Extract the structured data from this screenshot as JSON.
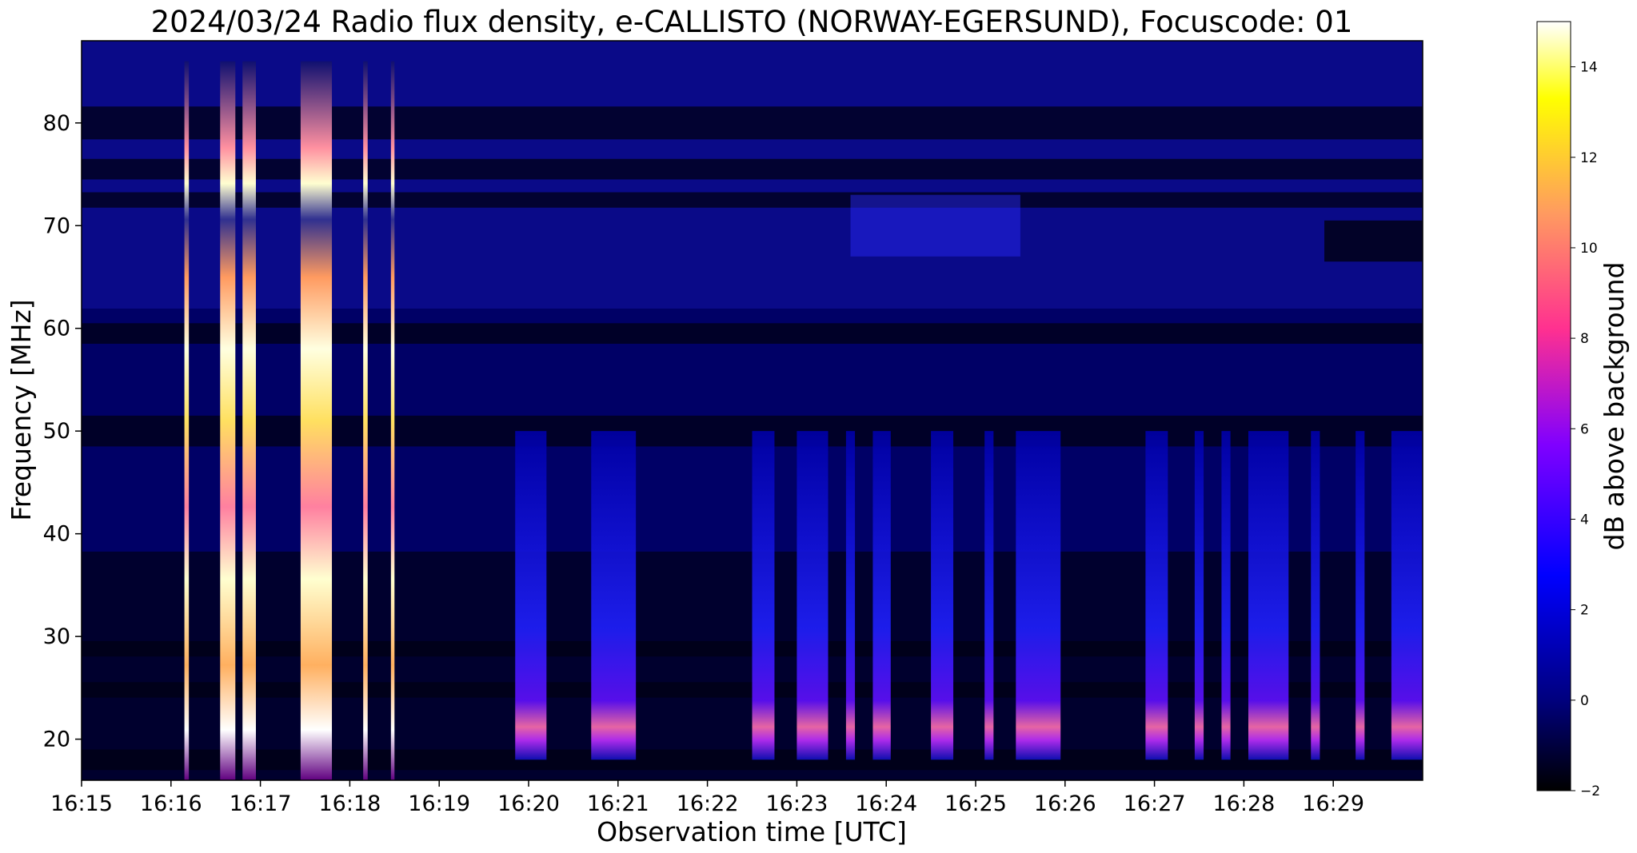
{
  "chart_data": {
    "type": "heatmap",
    "title": "2024/03/24  Radio flux density, e-CALLISTO (NORWAY-EGERSUND), Focuscode: 01",
    "xlabel": "Observation time [UTC]",
    "ylabel": "Frequency [MHz]",
    "x_ticks": [
      "16:15",
      "16:16",
      "16:17",
      "16:18",
      "16:19",
      "16:20",
      "16:21",
      "16:22",
      "16:23",
      "16:24",
      "16:25",
      "16:26",
      "16:27",
      "16:28",
      "16:29"
    ],
    "x_range_min": [
      0,
      15
    ],
    "y_ticks": [
      20,
      30,
      40,
      50,
      60,
      70,
      80
    ],
    "y_range_mhz": [
      16,
      88
    ],
    "colorbar": {
      "label": "dB above background",
      "ticks": [
        -2,
        0,
        2,
        4,
        6,
        8,
        10,
        12,
        14
      ],
      "range": [
        -2,
        15
      ],
      "colormap": "gnuplot2",
      "colors": [
        "#000000",
        "#000080",
        "#0000ff",
        "#8000ff",
        "#ff3090",
        "#ff9a60",
        "#ffff00",
        "#ffffff"
      ]
    },
    "strong_bursts": [
      {
        "start_min": 1.15,
        "end_min": 1.2
      },
      {
        "start_min": 1.55,
        "end_min": 1.72
      },
      {
        "start_min": 1.8,
        "end_min": 1.95
      },
      {
        "start_min": 2.45,
        "end_min": 2.8
      },
      {
        "start_min": 3.15,
        "end_min": 3.2
      },
      {
        "start_min": 3.46,
        "end_min": 3.5
      }
    ],
    "moderate_bursts": [
      {
        "start_min": 4.85,
        "end_min": 5.2
      },
      {
        "start_min": 5.7,
        "end_min": 6.2
      },
      {
        "start_min": 7.5,
        "end_min": 7.75
      },
      {
        "start_min": 8.0,
        "end_min": 8.35
      },
      {
        "start_min": 8.55,
        "end_min": 8.65
      },
      {
        "start_min": 8.85,
        "end_min": 9.05
      },
      {
        "start_min": 9.5,
        "end_min": 9.75
      },
      {
        "start_min": 10.1,
        "end_min": 10.2
      },
      {
        "start_min": 10.45,
        "end_min": 10.95
      },
      {
        "start_min": 11.9,
        "end_min": 12.15
      },
      {
        "start_min": 12.45,
        "end_min": 12.55
      },
      {
        "start_min": 12.75,
        "end_min": 12.85
      },
      {
        "start_min": 13.05,
        "end_min": 13.5
      },
      {
        "start_min": 13.75,
        "end_min": 13.85
      },
      {
        "start_min": 14.25,
        "end_min": 14.35
      },
      {
        "start_min": 14.65,
        "end_min": 15.0
      }
    ]
  }
}
